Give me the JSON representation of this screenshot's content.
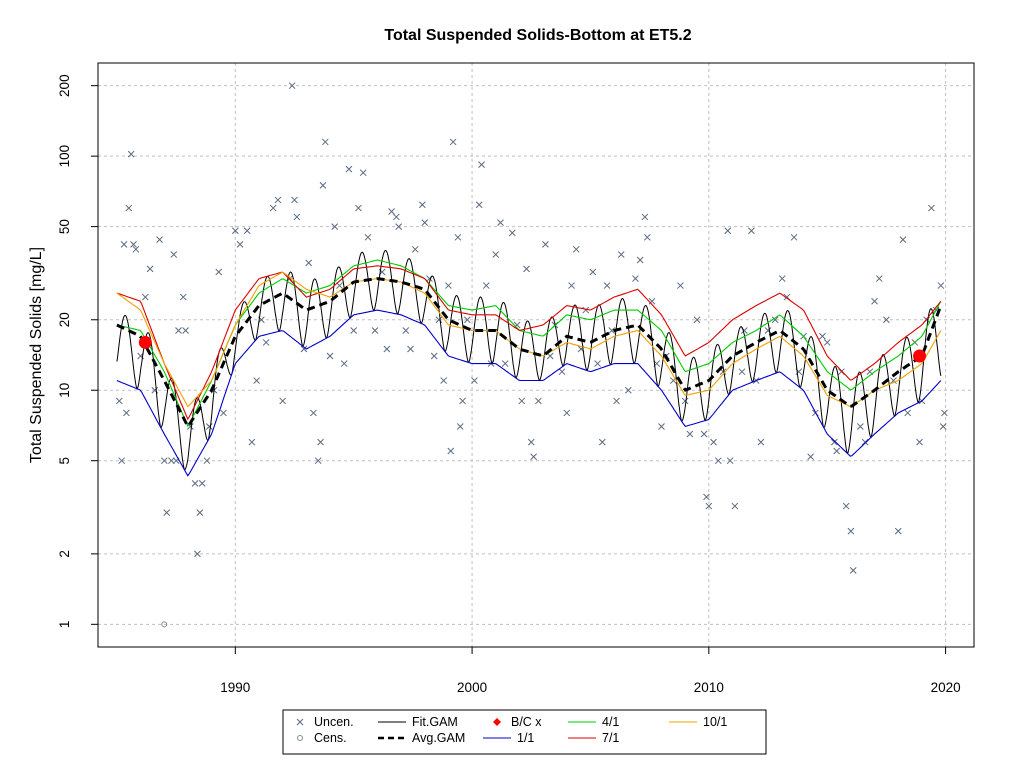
{
  "chart_data": {
    "type": "line",
    "title": "Total Suspended Solids-Bottom at ET5.2",
    "ylabel": "Total Suspended Solids [mg/L]",
    "xlabel": "",
    "y_scale": "log",
    "xlim": [
      1984.2,
      2021.2
    ],
    "ylim": [
      0.8,
      250
    ],
    "x_ticks": [
      1990,
      2000,
      2010,
      2020
    ],
    "y_ticks": [
      1,
      2,
      5,
      10,
      20,
      50,
      100,
      200
    ],
    "grid": true,
    "legend_position": "bottom",
    "legend": [
      {
        "label": "Uncen.",
        "symbol": "cross",
        "color": "#5a6a80"
      },
      {
        "label": "Cens.",
        "symbol": "circle",
        "color": "#7a8a9a"
      },
      {
        "label": "Fit.GAM",
        "symbol": "line",
        "color": "#000000"
      },
      {
        "label": "Avg.GAM",
        "symbol": "dashed",
        "color": "#000000"
      },
      {
        "label": "B/C x",
        "symbol": "diamond",
        "color": "#ff0000"
      },
      {
        "label": "1/1",
        "symbol": "line",
        "color": "#0000cc"
      },
      {
        "label": "4/1",
        "symbol": "line",
        "color": "#00cc00"
      },
      {
        "label": "7/1",
        "symbol": "line",
        "color": "#dd0000"
      },
      {
        "label": "10/1",
        "symbol": "line",
        "color": "#f0a000"
      }
    ],
    "series": [
      {
        "name": "Avg.GAM",
        "color": "#000000",
        "x": [
          1985.0,
          1986.0,
          1987.0,
          1988.0,
          1989.0,
          1990.0,
          1991.0,
          1992.0,
          1993.0,
          1994.0,
          1995.0,
          1996.0,
          1997.0,
          1998.0,
          1999.0,
          2000.0,
          2001.0,
          2002.0,
          2003.0,
          2004.0,
          2005.0,
          2006.0,
          2007.0,
          2008.0,
          2009.0,
          2010.0,
          2011.0,
          2012.0,
          2013.0,
          2014.0,
          2015.0,
          2016.0,
          2017.0,
          2018.0,
          2019.0,
          2019.8
        ],
        "y": [
          19,
          17,
          11,
          7,
          10,
          17,
          23,
          26,
          22,
          24,
          29,
          30,
          29,
          27,
          20,
          18,
          18,
          15,
          14,
          17,
          16,
          18,
          19,
          15,
          10,
          11,
          14,
          16,
          18,
          15,
          10,
          8.5,
          10,
          12,
          14,
          23
        ]
      },
      {
        "name": "1/1",
        "color": "#0000cc",
        "x": [
          1985.0,
          1986.0,
          1987.0,
          1988.0,
          1989.0,
          1990.0,
          1991.0,
          1992.0,
          1993.0,
          1994.0,
          1995.0,
          1996.0,
          1997.0,
          1998.0,
          1999.0,
          2000.0,
          2001.0,
          2002.0,
          2003.0,
          2004.0,
          2005.0,
          2006.0,
          2007.0,
          2008.0,
          2009.0,
          2010.0,
          2011.0,
          2012.0,
          2013.0,
          2014.0,
          2015.0,
          2016.0,
          2017.0,
          2018.0,
          2019.0,
          2019.8
        ],
        "y": [
          11,
          10,
          6.5,
          4.3,
          6.5,
          13,
          17,
          18,
          15,
          17,
          21,
          22,
          21,
          19,
          14,
          13,
          13,
          11,
          11,
          13,
          12,
          13,
          13,
          10,
          7,
          7.5,
          10,
          11,
          12,
          10,
          6.5,
          5.2,
          6.5,
          8,
          9,
          11
        ]
      },
      {
        "name": "4/1",
        "color": "#00cc00",
        "x": [
          1985.0,
          1986.0,
          1987.0,
          1988.0,
          1989.0,
          1990.0,
          1991.0,
          1992.0,
          1993.0,
          1994.0,
          1995.0,
          1996.0,
          1997.0,
          1998.0,
          1999.0,
          2000.0,
          2001.0,
          2002.0,
          2003.0,
          2004.0,
          2005.0,
          2006.0,
          2007.0,
          2008.0,
          2009.0,
          2010.0,
          2011.0,
          2012.0,
          2013.0,
          2014.0,
          2015.0,
          2016.0,
          2017.0,
          2018.0,
          2019.0,
          2019.8
        ],
        "y": [
          19,
          18,
          12,
          7,
          11,
          19,
          26,
          30,
          26,
          28,
          34,
          36,
          34,
          30,
          23,
          22,
          23,
          18,
          17,
          21,
          20,
          22,
          22,
          18,
          12,
          13,
          16,
          18,
          21,
          17,
          12,
          10,
          12,
          14,
          17,
          24
        ]
      },
      {
        "name": "7/1",
        "color": "#dd0000",
        "x": [
          1985.0,
          1986.0,
          1987.0,
          1988.0,
          1989.0,
          1990.0,
          1991.0,
          1992.0,
          1993.0,
          1994.0,
          1995.0,
          1996.0,
          1997.0,
          1998.0,
          1999.0,
          2000.0,
          2001.0,
          2002.0,
          2003.0,
          2004.0,
          2005.0,
          2006.0,
          2007.0,
          2008.0,
          2009.0,
          2010.0,
          2011.0,
          2012.0,
          2013.0,
          2014.0,
          2015.0,
          2016.0,
          2017.0,
          2018.0,
          2019.0,
          2019.8
        ],
        "y": [
          26,
          24,
          13,
          7.5,
          12,
          22,
          30,
          32,
          25,
          27,
          33,
          34,
          33,
          30,
          22,
          21,
          21,
          18,
          19,
          23,
          22,
          25,
          27,
          21,
          14,
          16,
          20,
          23,
          26,
          22,
          14,
          11,
          13,
          16,
          19,
          24
        ]
      },
      {
        "name": "10/1",
        "color": "#f0a000",
        "x": [
          1985.0,
          1986.0,
          1987.0,
          1988.0,
          1989.0,
          1990.0,
          1991.0,
          1992.0,
          1993.0,
          1994.0,
          1995.0,
          1996.0,
          1997.0,
          1998.0,
          1999.0,
          2000.0,
          2001.0,
          2002.0,
          2003.0,
          2004.0,
          2005.0,
          2006.0,
          2007.0,
          2008.0,
          2009.0,
          2010.0,
          2011.0,
          2012.0,
          2013.0,
          2014.0,
          2015.0,
          2016.0,
          2017.0,
          2018.0,
          2019.0,
          2019.8
        ],
        "y": [
          26,
          22,
          13,
          8.5,
          11,
          19,
          28,
          32,
          27,
          25,
          29,
          30,
          29,
          26,
          19,
          18,
          18,
          15,
          14,
          16,
          15,
          17,
          18,
          14,
          9.5,
          10,
          13,
          15,
          17,
          14,
          9.5,
          8.5,
          10,
          11,
          13,
          18
        ]
      }
    ],
    "bc_points": [
      {
        "x": 1986.2,
        "y": 16
      },
      {
        "x": 2018.9,
        "y": 14
      }
    ],
    "observations_uncensored": [
      [
        1985.1,
        9
      ],
      [
        1985.2,
        5
      ],
      [
        1985.3,
        42
      ],
      [
        1985.4,
        8
      ],
      [
        1985.5,
        60
      ],
      [
        1985.6,
        102
      ],
      [
        1985.7,
        42
      ],
      [
        1985.8,
        40
      ],
      [
        1986.0,
        14
      ],
      [
        1986.2,
        25
      ],
      [
        1986.4,
        33
      ],
      [
        1986.6,
        10
      ],
      [
        1986.8,
        44
      ],
      [
        1987.0,
        5
      ],
      [
        1987.1,
        3
      ],
      [
        1987.3,
        5
      ],
      [
        1987.4,
        38
      ],
      [
        1987.5,
        5
      ],
      [
        1987.6,
        18
      ],
      [
        1987.8,
        25
      ],
      [
        1987.9,
        18
      ],
      [
        1988.1,
        7
      ],
      [
        1988.3,
        4
      ],
      [
        1988.4,
        2
      ],
      [
        1988.5,
        3
      ],
      [
        1988.6,
        4
      ],
      [
        1988.8,
        5
      ],
      [
        1988.9,
        7
      ],
      [
        1989.1,
        10
      ],
      [
        1989.3,
        32
      ],
      [
        1989.5,
        8
      ],
      [
        1990.0,
        48
      ],
      [
        1990.2,
        42
      ],
      [
        1990.5,
        48
      ],
      [
        1990.7,
        6
      ],
      [
        1990.9,
        11
      ],
      [
        1991.1,
        20
      ],
      [
        1991.3,
        16
      ],
      [
        1991.6,
        60
      ],
      [
        1991.8,
        65
      ],
      [
        1992.0,
        9
      ],
      [
        1992.3,
        30
      ],
      [
        1992.4,
        200
      ],
      [
        1992.5,
        65
      ],
      [
        1992.6,
        55
      ],
      [
        1992.9,
        15
      ],
      [
        1993.1,
        35
      ],
      [
        1993.3,
        8
      ],
      [
        1993.5,
        5
      ],
      [
        1993.6,
        6
      ],
      [
        1993.7,
        75
      ],
      [
        1993.8,
        115
      ],
      [
        1994.0,
        14
      ],
      [
        1994.2,
        50
      ],
      [
        1994.4,
        28
      ],
      [
        1994.6,
        13
      ],
      [
        1994.8,
        88
      ],
      [
        1995.0,
        18
      ],
      [
        1995.2,
        60
      ],
      [
        1995.4,
        85
      ],
      [
        1995.6,
        45
      ],
      [
        1995.9,
        18
      ],
      [
        1996.2,
        32
      ],
      [
        1996.4,
        15
      ],
      [
        1996.6,
        58
      ],
      [
        1996.8,
        55
      ],
      [
        1996.9,
        50
      ],
      [
        1997.2,
        18
      ],
      [
        1997.4,
        15
      ],
      [
        1997.6,
        40
      ],
      [
        1997.9,
        62
      ],
      [
        1998.0,
        52
      ],
      [
        1998.2,
        30
      ],
      [
        1998.4,
        14
      ],
      [
        1998.6,
        20
      ],
      [
        1998.8,
        11
      ],
      [
        1999.0,
        28
      ],
      [
        1999.1,
        5.5
      ],
      [
        1999.2,
        115
      ],
      [
        1999.4,
        45
      ],
      [
        1999.5,
        7
      ],
      [
        1999.6,
        9
      ],
      [
        1999.8,
        20
      ],
      [
        2000.1,
        11
      ],
      [
        2000.3,
        62
      ],
      [
        2000.4,
        92
      ],
      [
        2000.6,
        28
      ],
      [
        2000.8,
        13
      ],
      [
        2001.0,
        38
      ],
      [
        2001.2,
        52
      ],
      [
        2001.4,
        13
      ],
      [
        2001.7,
        47
      ],
      [
        2001.9,
        19
      ],
      [
        2002.1,
        9
      ],
      [
        2002.3,
        33
      ],
      [
        2002.5,
        6
      ],
      [
        2002.6,
        5.2
      ],
      [
        2002.8,
        9
      ],
      [
        2003.1,
        42
      ],
      [
        2003.3,
        14
      ],
      [
        2003.5,
        19
      ],
      [
        2003.8,
        12
      ],
      [
        2004.0,
        8
      ],
      [
        2004.2,
        28
      ],
      [
        2004.4,
        40
      ],
      [
        2004.6,
        15
      ],
      [
        2004.8,
        22
      ],
      [
        2005.1,
        32
      ],
      [
        2005.3,
        13
      ],
      [
        2005.5,
        6
      ],
      [
        2005.7,
        28
      ],
      [
        2005.9,
        18
      ],
      [
        2006.1,
        9
      ],
      [
        2006.3,
        38
      ],
      [
        2006.6,
        10
      ],
      [
        2006.9,
        30
      ],
      [
        2007.1,
        36
      ],
      [
        2007.3,
        55
      ],
      [
        2007.4,
        45
      ],
      [
        2007.6,
        24
      ],
      [
        2007.8,
        13
      ],
      [
        2008.0,
        7
      ],
      [
        2008.2,
        14
      ],
      [
        2008.5,
        11
      ],
      [
        2008.8,
        28
      ],
      [
        2009.0,
        9
      ],
      [
        2009.2,
        6.5
      ],
      [
        2009.5,
        20
      ],
      [
        2009.8,
        6.5
      ],
      [
        2009.9,
        3.5
      ],
      [
        2010.0,
        3.2
      ],
      [
        2010.2,
        6
      ],
      [
        2010.4,
        5
      ],
      [
        2010.6,
        12
      ],
      [
        2010.8,
        48
      ],
      [
        2010.9,
        5
      ],
      [
        2011.1,
        3.2
      ],
      [
        2011.4,
        12
      ],
      [
        2011.5,
        18
      ],
      [
        2011.8,
        48
      ],
      [
        2012.0,
        11
      ],
      [
        2012.2,
        6
      ],
      [
        2012.5,
        18
      ],
      [
        2012.8,
        20
      ],
      [
        2013.1,
        30
      ],
      [
        2013.3,
        25
      ],
      [
        2013.6,
        45
      ],
      [
        2013.8,
        12
      ],
      [
        2014.0,
        17
      ],
      [
        2014.3,
        5.2
      ],
      [
        2014.5,
        8
      ],
      [
        2014.8,
        17
      ],
      [
        2015.0,
        16
      ],
      [
        2015.3,
        6
      ],
      [
        2015.4,
        5.5
      ],
      [
        2015.6,
        12
      ],
      [
        2015.8,
        3.2
      ],
      [
        2016.0,
        2.5
      ],
      [
        2016.1,
        1.7
      ],
      [
        2016.4,
        7
      ],
      [
        2016.6,
        6
      ],
      [
        2016.8,
        12
      ],
      [
        2017.0,
        24
      ],
      [
        2017.2,
        30
      ],
      [
        2017.5,
        20
      ],
      [
        2017.8,
        11
      ],
      [
        2018.0,
        2.5
      ],
      [
        2018.2,
        44
      ],
      [
        2018.4,
        8
      ],
      [
        2018.7,
        16
      ],
      [
        2018.9,
        6
      ],
      [
        2019.0,
        9
      ],
      [
        2019.2,
        20
      ],
      [
        2019.4,
        60
      ],
      [
        2019.6,
        22
      ],
      [
        2019.8,
        28
      ],
      [
        2019.9,
        7
      ],
      [
        2019.95,
        8
      ]
    ],
    "observations_censored": [
      [
        1987.0,
        1
      ]
    ]
  }
}
